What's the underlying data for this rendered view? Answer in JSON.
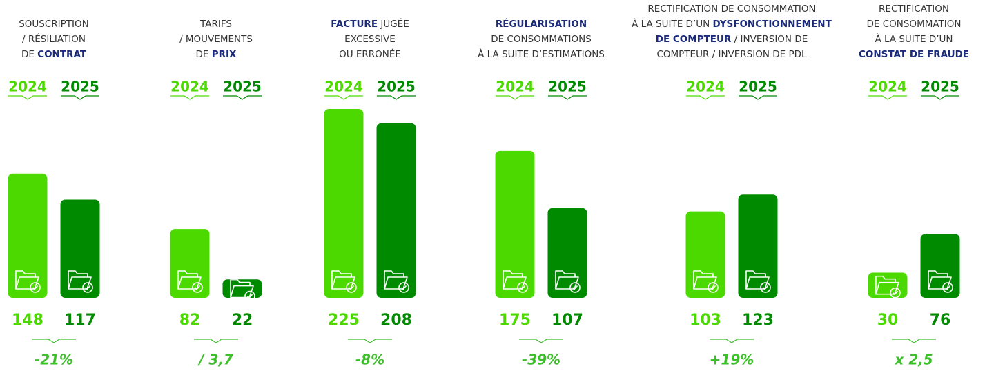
{
  "chart_data": {
    "type": "bar",
    "categories": [
      [
        [
          {
            "text": "SOUSCRIPTION",
            "bold": false
          }
        ],
        [
          {
            "text": "/ RÉSILIATION",
            "bold": false
          }
        ],
        [
          {
            "text": "DE ",
            "bold": false
          },
          {
            "text": "CONTRAT",
            "bold": true
          }
        ]
      ],
      [
        [
          {
            "text": "TARIFS",
            "bold": false
          }
        ],
        [
          {
            "text": "/ MOUVEMENTS",
            "bold": false
          }
        ],
        [
          {
            "text": "DE ",
            "bold": false
          },
          {
            "text": "PRIX",
            "bold": true
          }
        ]
      ],
      [
        [
          {
            "text": "FACTURE",
            "bold": true
          },
          {
            "text": " JUGÉE",
            "bold": false
          }
        ],
        [
          {
            "text": "EXCESSIVE",
            "bold": false
          }
        ],
        [
          {
            "text": "OU ERRONÉE",
            "bold": false
          }
        ]
      ],
      [
        [
          {
            "text": "RÉGULARISATION",
            "bold": true
          }
        ],
        [
          {
            "text": "DE CONSOMMATIONS",
            "bold": false
          }
        ],
        [
          {
            "text": "À LA SUITE D’ESTIMATIONS",
            "bold": false
          }
        ]
      ],
      [
        [
          {
            "text": "RECTIFICATION DE CONSOMMATION",
            "bold": false
          }
        ],
        [
          {
            "text": "À LA SUITE D’UN ",
            "bold": false
          },
          {
            "text": "DYSFONCTIONNEMENT",
            "bold": true
          }
        ],
        [
          {
            "text": "DE COMPTEUR",
            "bold": true
          },
          {
            "text": " / INVERSION DE",
            "bold": false
          }
        ],
        [
          {
            "text": "COMPTEUR / INVERSION DE PDL",
            "bold": false
          }
        ]
      ],
      [
        [
          {
            "text": "RECTIFICATION",
            "bold": false
          }
        ],
        [
          {
            "text": "DE CONSOMMATION",
            "bold": false
          }
        ],
        [
          {
            "text": "À LA SUITE D’UN",
            "bold": false
          }
        ],
        [
          {
            "text": "CONSTAT DE FRAUDE",
            "bold": true
          }
        ]
      ]
    ],
    "series": [
      {
        "name": "2024",
        "color": "#4cd900",
        "values": [
          148,
          82,
          225,
          175,
          103,
          30
        ]
      },
      {
        "name": "2025",
        "color": "#008a00",
        "values": [
          117,
          22,
          208,
          107,
          123,
          76
        ]
      }
    ],
    "changes": [
      "-21%",
      "/ 3,7",
      "-8%",
      "-39%",
      "+19%",
      "x 2,5"
    ],
    "change_color": "#3cbf2a",
    "ylim": [
      0,
      225
    ]
  }
}
